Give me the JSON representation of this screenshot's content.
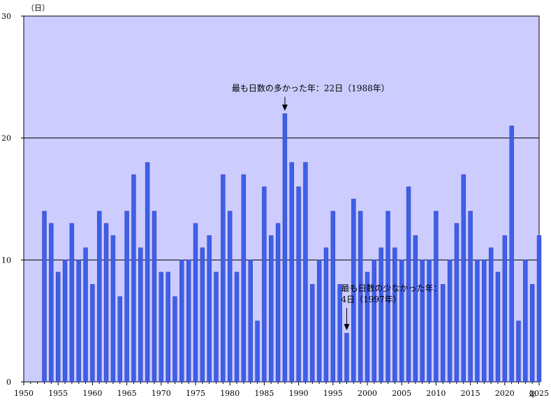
{
  "chart_data": {
    "type": "bar",
    "ylabel": "（日）",
    "xlabel": "年",
    "ylim": [
      0,
      30
    ],
    "xlim": [
      1950,
      2025
    ],
    "y_ticks": [
      0,
      10,
      20,
      30
    ],
    "x_ticks": [
      1950,
      1955,
      1960,
      1965,
      1970,
      1975,
      1980,
      1985,
      1990,
      1995,
      2000,
      2005,
      2010,
      2015,
      2020,
      2025
    ],
    "grid": "horizontal",
    "colors": {
      "plot_bg": "#ccccff",
      "bar": "#3f5fe8",
      "bar_stroke": "#2a3fb5"
    },
    "x": [
      1953,
      1954,
      1955,
      1956,
      1957,
      1958,
      1959,
      1960,
      1961,
      1962,
      1963,
      1964,
      1965,
      1966,
      1967,
      1968,
      1969,
      1970,
      1971,
      1972,
      1973,
      1974,
      1975,
      1976,
      1977,
      1978,
      1979,
      1980,
      1981,
      1982,
      1983,
      1984,
      1985,
      1986,
      1987,
      1988,
      1989,
      1990,
      1991,
      1992,
      1993,
      1994,
      1995,
      1996,
      1997,
      1998,
      1999,
      2000,
      2001,
      2002,
      2003,
      2004,
      2005,
      2006,
      2007,
      2008,
      2009,
      2010,
      2011,
      2012,
      2013,
      2014,
      2015,
      2016,
      2017,
      2018,
      2019,
      2020,
      2021,
      2022,
      2023,
      2024,
      2025
    ],
    "values": [
      14,
      13,
      9,
      10,
      13,
      10,
      11,
      8,
      14,
      13,
      12,
      7,
      14,
      17,
      11,
      18,
      14,
      9,
      9,
      7,
      10,
      10,
      13,
      11,
      12,
      9,
      17,
      14,
      9,
      17,
      10,
      5,
      16,
      12,
      13,
      22,
      18,
      16,
      18,
      8,
      10,
      11,
      14,
      8,
      4,
      15,
      14,
      9,
      10,
      11,
      14,
      11,
      10,
      16,
      12,
      10,
      10,
      14,
      8,
      10,
      13,
      17,
      14,
      10,
      10,
      11,
      9,
      12,
      21,
      5,
      10,
      8,
      12
    ],
    "annotations": [
      {
        "lines": [
          "最も日数の多かった年：22日（1988年）"
        ],
        "x": 1988,
        "y": 22
      },
      {
        "lines": [
          "最も日数の少なかった年：",
          "4日（1997年）"
        ],
        "x": 1997,
        "y": 4
      }
    ]
  }
}
